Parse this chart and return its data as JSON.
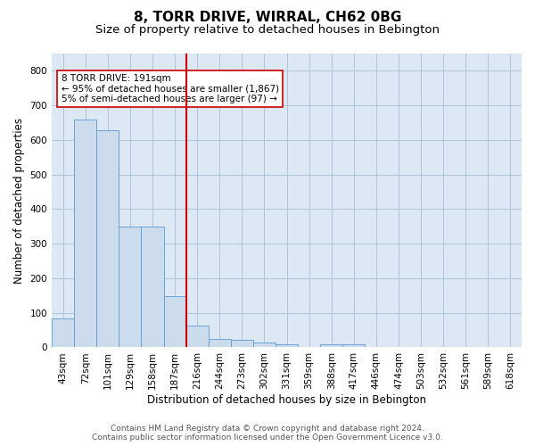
{
  "title": "8, TORR DRIVE, WIRRAL, CH62 0BG",
  "subtitle": "Size of property relative to detached houses in Bebington",
  "xlabel": "Distribution of detached houses by size in Bebington",
  "ylabel": "Number of detached properties",
  "categories": [
    "43sqm",
    "72sqm",
    "101sqm",
    "129sqm",
    "158sqm",
    "187sqm",
    "216sqm",
    "244sqm",
    "273sqm",
    "302sqm",
    "331sqm",
    "359sqm",
    "388sqm",
    "417sqm",
    "446sqm",
    "474sqm",
    "503sqm",
    "532sqm",
    "561sqm",
    "589sqm",
    "618sqm"
  ],
  "values": [
    83,
    660,
    628,
    350,
    350,
    148,
    62,
    25,
    22,
    13,
    8,
    0,
    10,
    10,
    0,
    0,
    0,
    0,
    0,
    0,
    0
  ],
  "bar_color": "#ccdcec",
  "bar_edge_color": "#5b9bd5",
  "vline_color": "#cc0000",
  "annotation_text": "8 TORR DRIVE: 191sqm\n← 95% of detached houses are smaller (1,867)\n5% of semi-detached houses are larger (97) →",
  "annotation_box_color": "#ffffff",
  "annotation_box_edge": "#cc0000",
  "ylim": [
    0,
    850
  ],
  "yticks": [
    0,
    100,
    200,
    300,
    400,
    500,
    600,
    700,
    800
  ],
  "background_color": "#ffffff",
  "plot_background": "#dce9f5",
  "grid_color": "#b0c4d8",
  "footer": "Contains HM Land Registry data © Crown copyright and database right 2024.\nContains public sector information licensed under the Open Government Licence v3.0.",
  "title_fontsize": 11,
  "subtitle_fontsize": 9.5,
  "xlabel_fontsize": 8.5,
  "ylabel_fontsize": 8.5,
  "tick_fontsize": 7.5,
  "footer_fontsize": 6.5
}
